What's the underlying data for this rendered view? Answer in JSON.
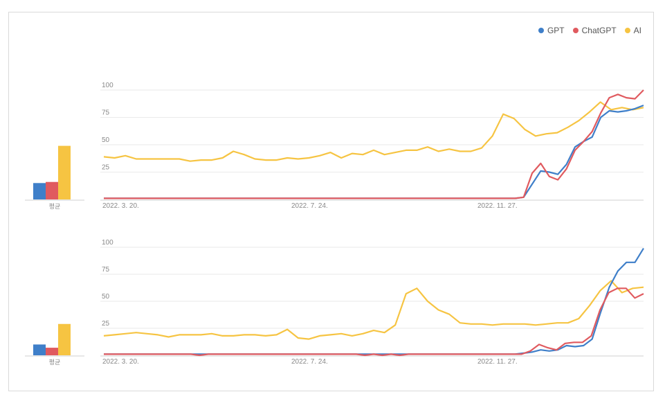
{
  "legend": [
    {
      "name": "GPT",
      "color": "#3f7fc9"
    },
    {
      "name": "ChatGPT",
      "color": "#e05a5f"
    },
    {
      "name": "AI",
      "color": "#f6c442"
    }
  ],
  "chart_data": [
    {
      "type": "line",
      "x_tick_labels": [
        "2022. 3. 20.",
        "2022. 7. 24.",
        "2022. 11. 27."
      ],
      "y_ticks": [
        25,
        50,
        75,
        100
      ],
      "ylim": [
        0,
        100
      ],
      "grid": true,
      "legend_position": "top-right",
      "series": [
        {
          "name": "GPT",
          "color": "#3f7fc9",
          "values": [
            1,
            1,
            1,
            1,
            1,
            1,
            1,
            1,
            1,
            1,
            1,
            1,
            1,
            1,
            1,
            1,
            1,
            1,
            1,
            1,
            1,
            1,
            1,
            1,
            1,
            1,
            1,
            1,
            1,
            1,
            1,
            1,
            1,
            1,
            1,
            1,
            1,
            1,
            1,
            1,
            1,
            1,
            1,
            1,
            1,
            1,
            1,
            1,
            1,
            2,
            14,
            26,
            25,
            23,
            32,
            48,
            53,
            57,
            75,
            81,
            80,
            81,
            83,
            86
          ]
        },
        {
          "name": "ChatGPT",
          "color": "#e05a5f",
          "values": [
            1,
            1,
            1,
            1,
            1,
            1,
            1,
            1,
            1,
            1,
            1,
            1,
            1,
            1,
            1,
            1,
            1,
            1,
            1,
            1,
            1,
            1,
            1,
            1,
            1,
            1,
            1,
            1,
            1,
            1,
            1,
            1,
            1,
            1,
            1,
            1,
            1,
            1,
            1,
            1,
            1,
            1,
            1,
            1,
            1,
            1,
            1,
            1,
            1,
            2,
            24,
            33,
            21,
            18,
            28,
            45,
            53,
            62,
            79,
            93,
            96,
            93,
            92,
            100
          ]
        },
        {
          "name": "AI",
          "color": "#f6c442",
          "values": [
            39,
            38,
            40,
            37,
            37,
            37,
            37,
            37,
            35,
            36,
            36,
            38,
            44,
            41,
            37,
            36,
            36,
            38,
            37,
            38,
            40,
            43,
            38,
            42,
            41,
            45,
            41,
            43,
            45,
            45,
            48,
            44,
            46,
            44,
            44,
            47,
            58,
            78,
            74,
            64,
            58,
            60,
            61,
            66,
            72,
            80,
            89,
            82,
            84,
            82,
            84
          ]
        }
      ],
      "side_bars": {
        "label": "평균",
        "values": [
          15,
          16,
          49
        ]
      }
    },
    {
      "type": "line",
      "x_tick_labels": [
        "2022. 3. 20.",
        "2022. 7. 24.",
        "2022. 11. 27."
      ],
      "y_ticks": [
        25,
        50,
        75,
        100
      ],
      "ylim": [
        0,
        100
      ],
      "grid": true,
      "series": [
        {
          "name": "GPT",
          "color": "#3f7fc9",
          "values": [
            1,
            1,
            1,
            1,
            1,
            1,
            1,
            1,
            1,
            1,
            1,
            1,
            1,
            1,
            1,
            1,
            1,
            1,
            1,
            1,
            1,
            1,
            1,
            1,
            1,
            1,
            1,
            1,
            1,
            1,
            1,
            1,
            1,
            1,
            1,
            1,
            1,
            1,
            1,
            1,
            1,
            1,
            1,
            1,
            1,
            1,
            1,
            1,
            1,
            2,
            3,
            5,
            4,
            5,
            9,
            8,
            9,
            15,
            40,
            63,
            78,
            86,
            86,
            99
          ]
        },
        {
          "name": "ChatGPT",
          "color": "#e05a5f",
          "values": [
            1,
            1,
            1,
            1,
            1,
            1,
            1,
            1,
            1,
            1,
            1,
            0,
            1,
            1,
            1,
            1,
            1,
            1,
            1,
            1,
            1,
            1,
            1,
            1,
            1,
            1,
            1,
            1,
            1,
            1,
            0,
            1,
            0,
            1,
            0,
            1,
            1,
            1,
            1,
            1,
            1,
            1,
            1,
            1,
            1,
            1,
            1,
            1,
            1,
            4,
            10,
            7,
            5,
            11,
            12,
            12,
            18,
            42,
            58,
            62,
            62,
            53,
            57
          ]
        },
        {
          "name": "AI",
          "color": "#f6c442",
          "values": [
            18,
            19,
            20,
            21,
            20,
            19,
            17,
            19,
            19,
            19,
            20,
            18,
            18,
            19,
            19,
            18,
            19,
            24,
            16,
            15,
            18,
            19,
            20,
            18,
            20,
            23,
            21,
            28,
            57,
            62,
            50,
            42,
            38,
            30,
            29,
            29,
            28,
            29,
            29,
            29,
            28,
            29,
            30,
            30,
            34,
            46,
            60,
            69,
            58,
            62,
            63
          ]
        }
      ],
      "side_bars": {
        "label": "평균",
        "values": [
          10,
          7,
          29
        ]
      }
    }
  ]
}
